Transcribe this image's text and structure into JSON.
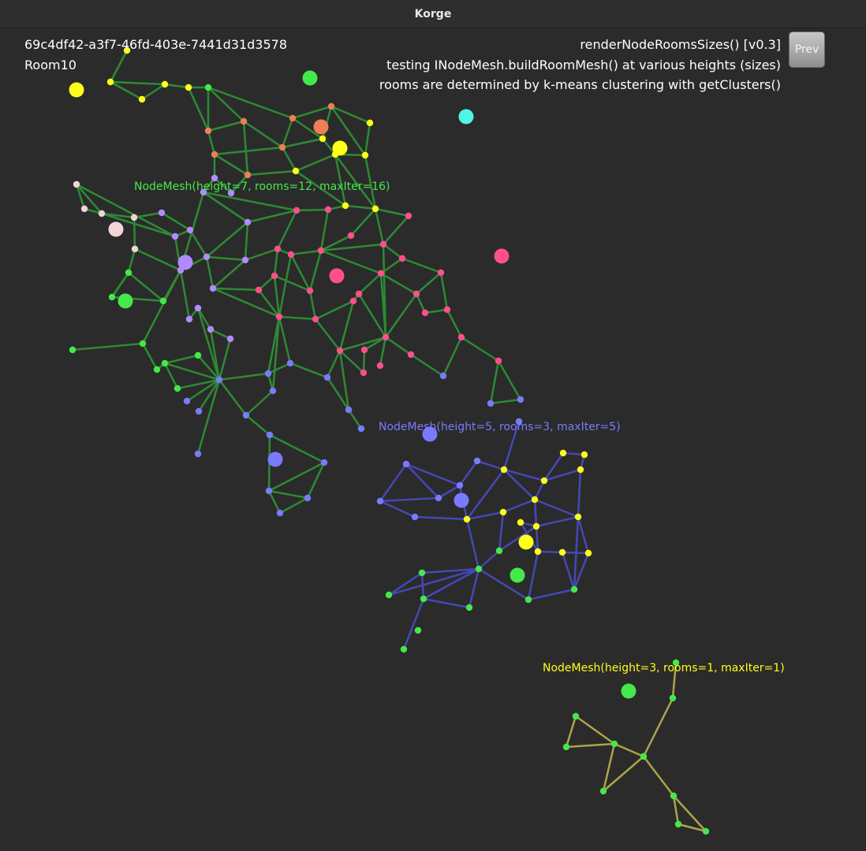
{
  "window": {
    "title": "Korge"
  },
  "hud": {
    "seed": "69c4df42-a3f7-46fd-403e-7441d31d3578",
    "room": "Room10",
    "render_title": "renderNodeRoomsSizes() [v0.3]",
    "subtitle1": "testing INodeMesh.buildRoomMesh() at various heights (sizes)",
    "subtitle2": "rooms are determined by k-means clustering with getClusters()",
    "prev_label": "Prev"
  },
  "colors": {
    "background": "#2b2b2b",
    "edge_height7": "#2d8a34",
    "edge_height5": "#4448b4",
    "edge_height3": "#aca448",
    "room_green": "#45e84a",
    "room_yellow": "#ffff1a",
    "room_orange": "#ed7e55",
    "room_pink": "#ff4f8b",
    "room_purple": "#b28aff",
    "room_blue": "#7a7aff",
    "room_lightpink": "#f1d4d6",
    "room_cyan": "#4ff4e6"
  },
  "meshes": [
    {
      "id": "mesh-height7",
      "label": "NodeMesh(height=7, rooms=12, maxIter=16)"
    },
    {
      "id": "mesh-height5",
      "label": "NodeMesh(height=5, rooms=3, maxIter=5)"
    },
    {
      "id": "mesh-height3",
      "label": "NodeMesh(height=3, rooms=1, maxIter=1)"
    }
  ]
}
